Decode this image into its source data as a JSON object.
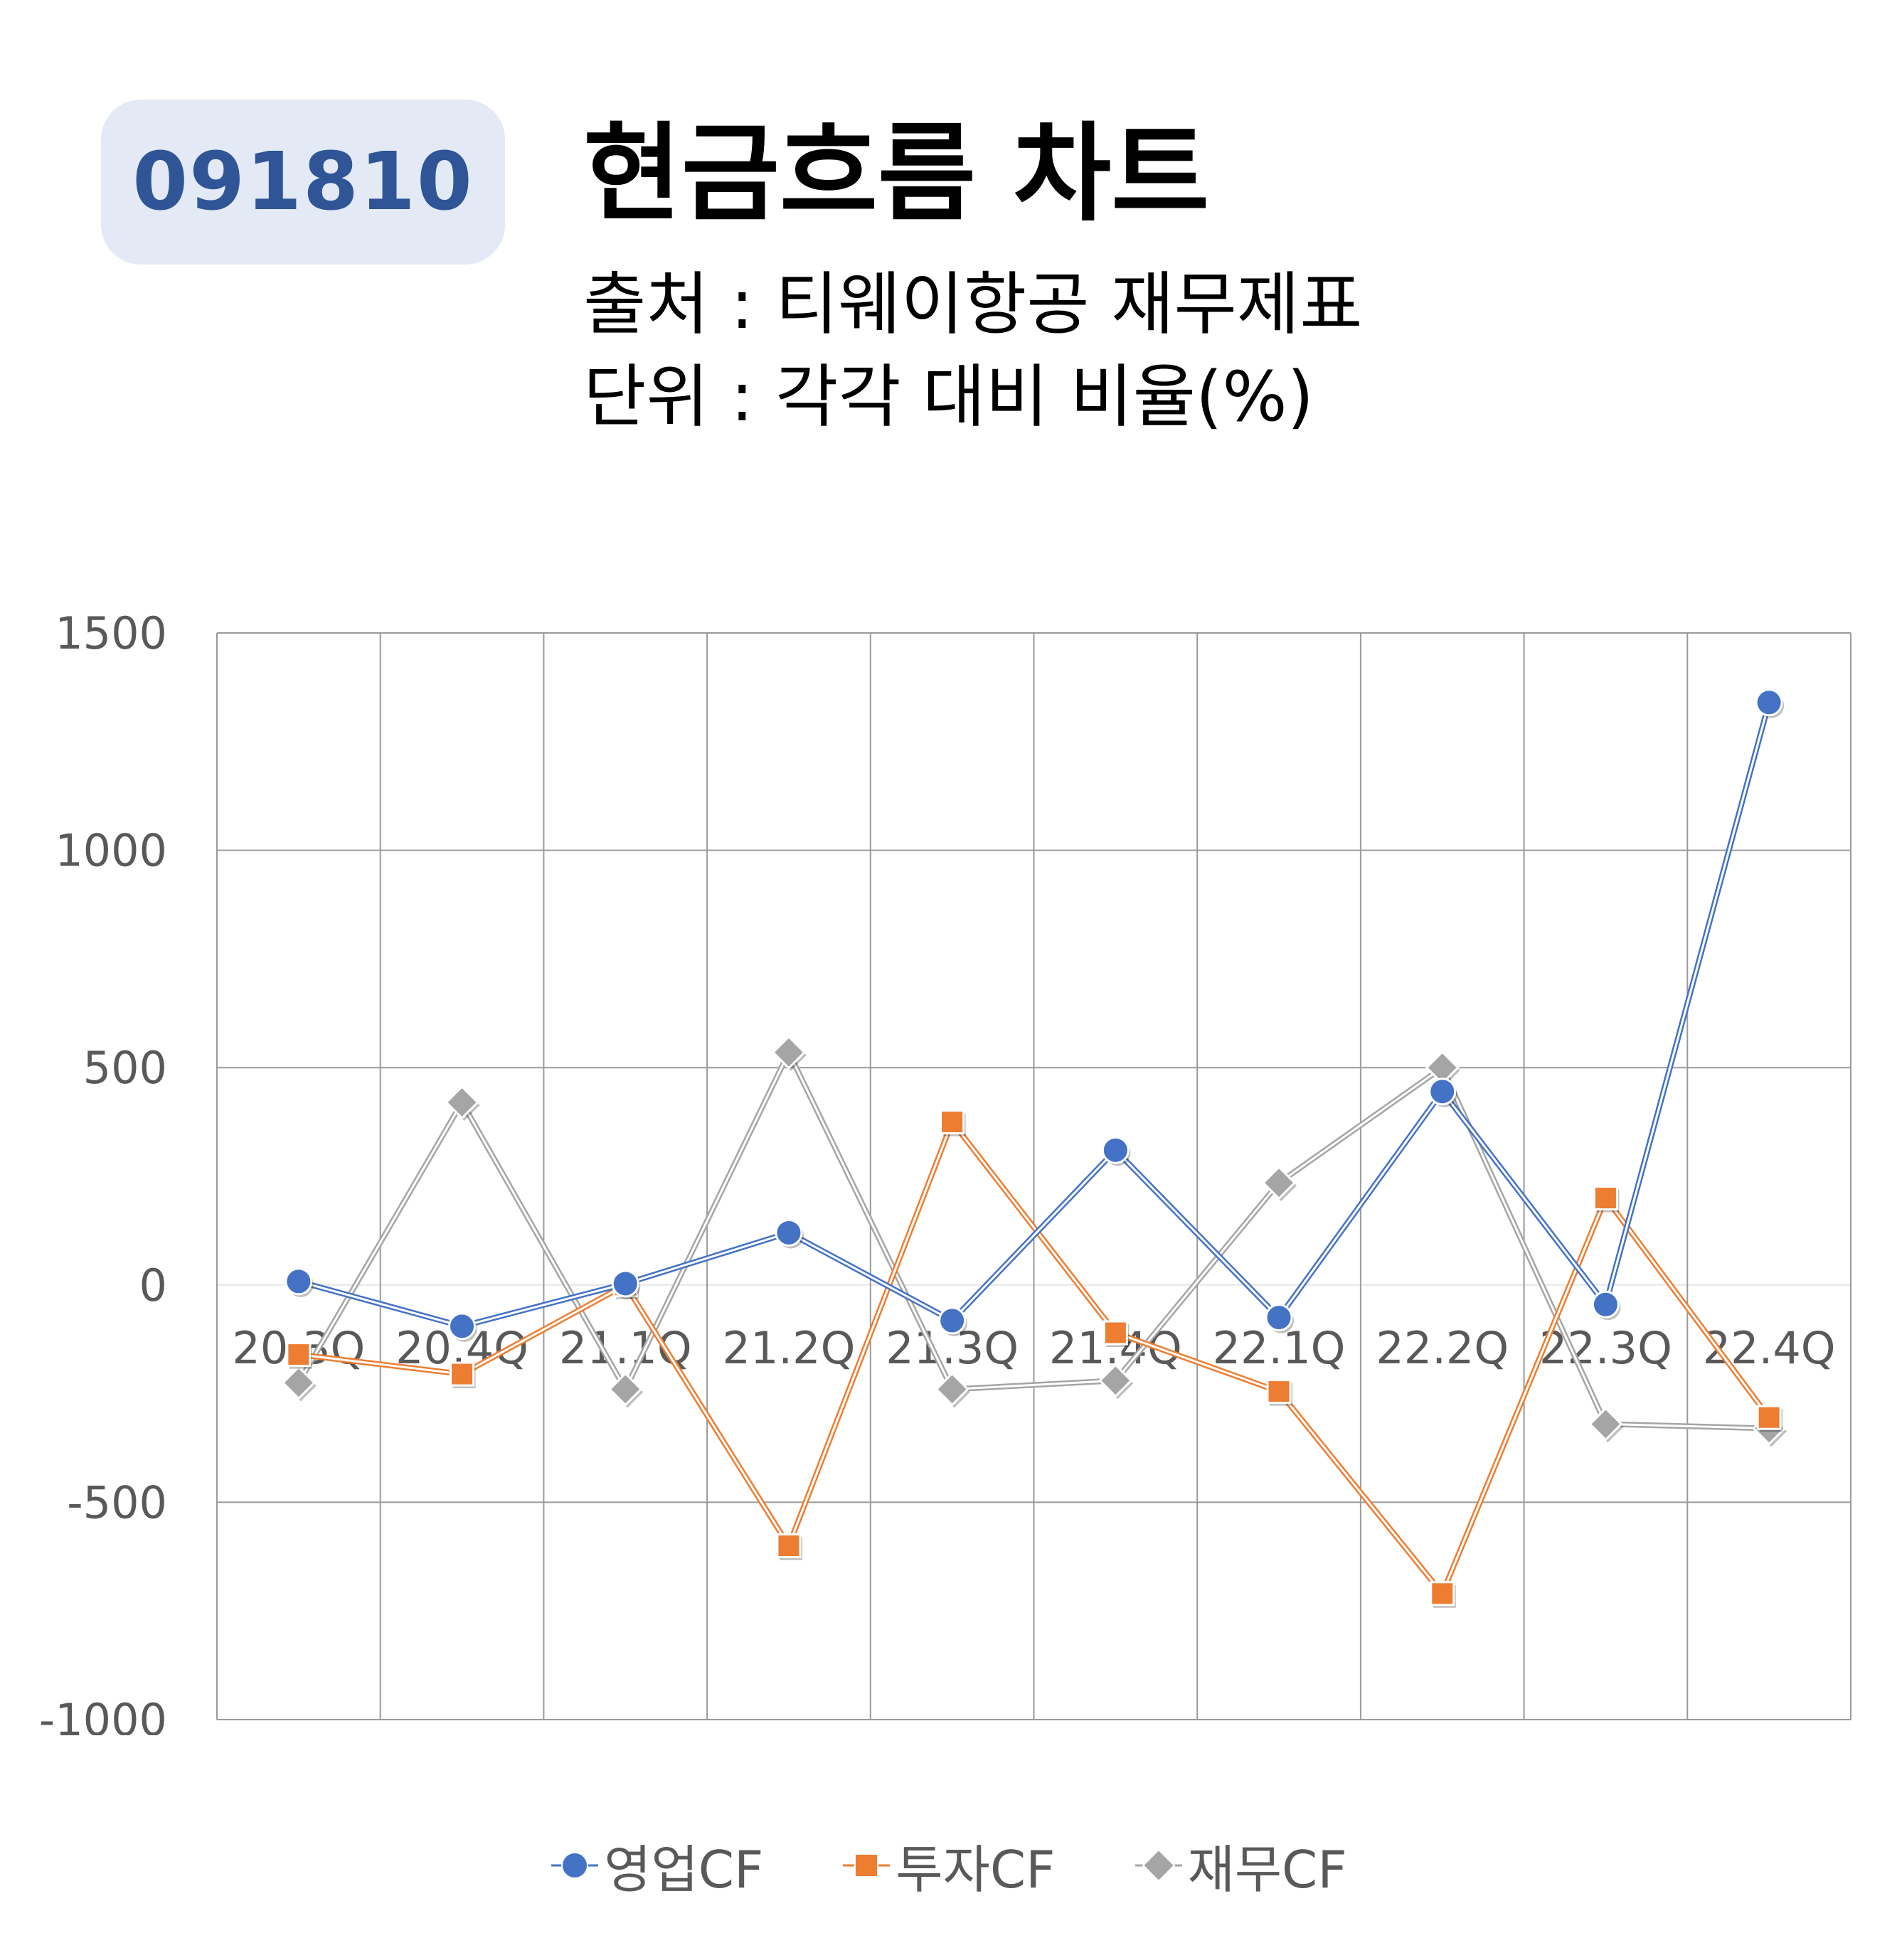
{
  "header": {
    "ticker": "091810",
    "title": "현금흐름 차트",
    "source": "출처 : 티웨이항공 재무제표",
    "unit": "단위 : 각각 대비 비율(%)"
  },
  "chart_data": {
    "type": "line",
    "categories": [
      "20.3Q",
      "20.4Q",
      "21.1Q",
      "21.2Q",
      "21.3Q",
      "21.4Q",
      "22.1Q",
      "22.2Q",
      "22.3Q",
      "22.4Q"
    ],
    "ylim": [
      -1000,
      1500
    ],
    "yticks": [
      1500,
      1000,
      500,
      0,
      -500,
      -1000
    ],
    "grid": true,
    "legend_position": "bottom",
    "series": [
      {
        "name": "영업CF",
        "color": "#4472c4",
        "marker": "circle",
        "values": [
          8,
          -95,
          3,
          120,
          -82,
          310,
          -75,
          445,
          -45,
          1340
        ]
      },
      {
        "name": "투자CF",
        "color": "#ed7d31",
        "marker": "square",
        "values": [
          -160,
          -205,
          0,
          -600,
          375,
          -110,
          -245,
          -710,
          200,
          -305
        ]
      },
      {
        "name": "재무CF",
        "color": "#a5a5a5",
        "marker": "diamond",
        "values": [
          -225,
          420,
          -240,
          535,
          -240,
          -220,
          235,
          500,
          -320,
          -330
        ]
      }
    ]
  }
}
